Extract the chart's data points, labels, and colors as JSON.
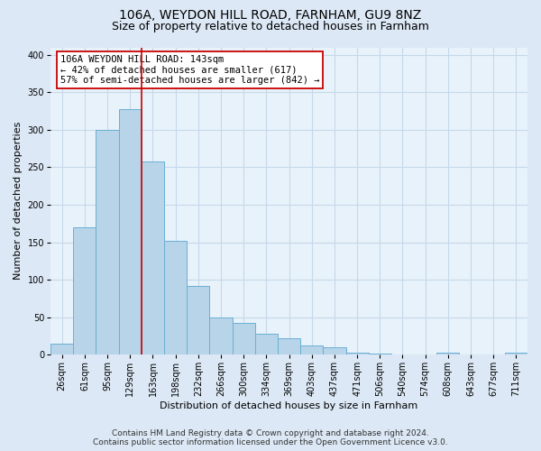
{
  "title": "106A, WEYDON HILL ROAD, FARNHAM, GU9 8NZ",
  "subtitle": "Size of property relative to detached houses in Farnham",
  "xlabel": "Distribution of detached houses by size in Farnham",
  "ylabel": "Number of detached properties",
  "bar_labels": [
    "26sqm",
    "61sqm",
    "95sqm",
    "129sqm",
    "163sqm",
    "198sqm",
    "232sqm",
    "266sqm",
    "300sqm",
    "334sqm",
    "369sqm",
    "403sqm",
    "437sqm",
    "471sqm",
    "506sqm",
    "540sqm",
    "574sqm",
    "608sqm",
    "643sqm",
    "677sqm",
    "711sqm"
  ],
  "bar_values": [
    15,
    170,
    300,
    328,
    258,
    152,
    92,
    50,
    42,
    28,
    22,
    12,
    10,
    2,
    1,
    0,
    0,
    2,
    0,
    0,
    2
  ],
  "bar_color": "#b8d4e8",
  "bar_edge_color": "#6aafd6",
  "vline_color": "#cc0000",
  "vline_index": 3.5,
  "annotation_text": "106A WEYDON HILL ROAD: 143sqm\n← 42% of detached houses are smaller (617)\n57% of semi-detached houses are larger (842) →",
  "annotation_box_color": "white",
  "annotation_box_edge": "#cc0000",
  "ylim": [
    0,
    410
  ],
  "yticks": [
    0,
    50,
    100,
    150,
    200,
    250,
    300,
    350,
    400
  ],
  "footer_line1": "Contains HM Land Registry data © Crown copyright and database right 2024.",
  "footer_line2": "Contains public sector information licensed under the Open Government Licence v3.0.",
  "bg_color": "#dce8f5",
  "plot_bg_color": "#e8f2fa",
  "grid_color": "#c5d8ea",
  "title_fontsize": 10,
  "subtitle_fontsize": 9,
  "axis_label_fontsize": 8,
  "tick_fontsize": 7,
  "annotation_fontsize": 7.5,
  "footer_fontsize": 6.5
}
